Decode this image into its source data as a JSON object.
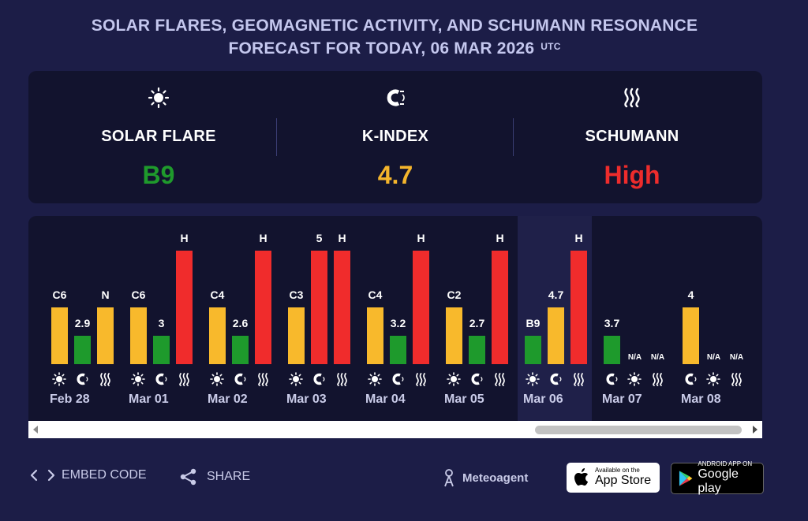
{
  "header": {
    "title_line1": "SOLAR FLARES, GEOMAGNETIC ACTIVITY, AND SCHUMANN RESONANCE",
    "title_line2": "FORECAST FOR TODAY, 06 MAR 2026",
    "tz": "UTC"
  },
  "summary": {
    "solar_flare": {
      "label": "SOLAR FLARE",
      "value": "B9",
      "color": "#1f9a2c",
      "icon": "sun-icon"
    },
    "k_index": {
      "label": "K-INDEX",
      "value": "4.7",
      "color": "#f4b52c",
      "icon": "magnet-icon"
    },
    "schumann": {
      "label": "SCHUMANN",
      "value": "High",
      "color": "#ee2c2c",
      "icon": "wave-icon"
    }
  },
  "colors": {
    "yellow": "#f8b92c",
    "green": "#1e9a2c",
    "red": "#f02c2c"
  },
  "days": [
    {
      "date": "Feb 28",
      "bars": [
        {
          "kind": "flare",
          "label": "C6",
          "level": 0.5,
          "color": "yellow"
        },
        {
          "kind": "kindex",
          "label": "2.9",
          "level": 0.25,
          "color": "green"
        },
        {
          "kind": "schumann",
          "label": "N",
          "level": 0.5,
          "color": "yellow"
        }
      ],
      "icons": [
        "sun-icon",
        "magnet-icon",
        "wave-icon"
      ]
    },
    {
      "date": "Mar 01",
      "bars": [
        {
          "kind": "flare",
          "label": "C6",
          "level": 0.5,
          "color": "yellow"
        },
        {
          "kind": "kindex",
          "label": "3",
          "level": 0.25,
          "color": "green"
        },
        {
          "kind": "schumann",
          "label": "H",
          "level": 1,
          "color": "red"
        }
      ],
      "icons": [
        "sun-icon",
        "magnet-icon",
        "wave-icon"
      ]
    },
    {
      "date": "Mar 02",
      "bars": [
        {
          "kind": "flare",
          "label": "C4",
          "level": 0.5,
          "color": "yellow"
        },
        {
          "kind": "kindex",
          "label": "2.6",
          "level": 0.25,
          "color": "green"
        },
        {
          "kind": "schumann",
          "label": "H",
          "level": 1,
          "color": "red"
        }
      ],
      "icons": [
        "sun-icon",
        "magnet-icon",
        "wave-icon"
      ]
    },
    {
      "date": "Mar 03",
      "bars": [
        {
          "kind": "flare",
          "label": "C3",
          "level": 0.5,
          "color": "yellow"
        },
        {
          "kind": "kindex",
          "label": "5",
          "level": 1,
          "color": "red"
        },
        {
          "kind": "schumann",
          "label": "H",
          "level": 1,
          "color": "red"
        }
      ],
      "icons": [
        "sun-icon",
        "magnet-icon",
        "wave-icon"
      ]
    },
    {
      "date": "Mar 04",
      "bars": [
        {
          "kind": "flare",
          "label": "C4",
          "level": 0.5,
          "color": "yellow"
        },
        {
          "kind": "kindex",
          "label": "3.2",
          "level": 0.25,
          "color": "green"
        },
        {
          "kind": "schumann",
          "label": "H",
          "level": 1,
          "color": "red"
        }
      ],
      "icons": [
        "sun-icon",
        "magnet-icon",
        "wave-icon"
      ]
    },
    {
      "date": "Mar 05",
      "bars": [
        {
          "kind": "flare",
          "label": "C2",
          "level": 0.5,
          "color": "yellow"
        },
        {
          "kind": "kindex",
          "label": "2.7",
          "level": 0.25,
          "color": "green"
        },
        {
          "kind": "schumann",
          "label": "H",
          "level": 1,
          "color": "red"
        }
      ],
      "icons": [
        "sun-icon",
        "magnet-icon",
        "wave-icon"
      ]
    },
    {
      "date": "Mar 06",
      "today": true,
      "bars": [
        {
          "kind": "flare",
          "label": "B9",
          "level": 0.25,
          "color": "green"
        },
        {
          "kind": "kindex",
          "label": "4.7",
          "level": 0.5,
          "color": "yellow"
        },
        {
          "kind": "schumann",
          "label": "H",
          "level": 1,
          "color": "red"
        }
      ],
      "icons": [
        "sun-icon",
        "magnet-icon",
        "wave-icon"
      ]
    },
    {
      "date": "Mar 07",
      "bars": [
        {
          "kind": "kindex",
          "label": "3.7",
          "level": 0.25,
          "color": "green"
        },
        {
          "kind": "flare",
          "label": "N/A",
          "level": 0,
          "color": "none"
        },
        {
          "kind": "schumann",
          "label": "N/A",
          "level": 0,
          "color": "none"
        }
      ],
      "icons": [
        "magnet-icon",
        "sun-icon",
        "wave-icon"
      ]
    },
    {
      "date": "Mar 08",
      "bars": [
        {
          "kind": "kindex",
          "label": "4",
          "level": 0.5,
          "color": "yellow"
        },
        {
          "kind": "flare",
          "label": "N/A",
          "level": 0,
          "color": "none"
        },
        {
          "kind": "schumann",
          "label": "N/A",
          "level": 0,
          "color": "none"
        }
      ],
      "icons": [
        "magnet-icon",
        "sun-icon",
        "wave-icon"
      ]
    }
  ],
  "footer": {
    "embed": "EMBED CODE",
    "share": "SHARE",
    "brand": "Meteoagent",
    "appstore_small": "Available on the",
    "appstore_big": "App Store",
    "googleplay_small": "ANDROID APP ON",
    "googleplay_big": "Google play"
  }
}
